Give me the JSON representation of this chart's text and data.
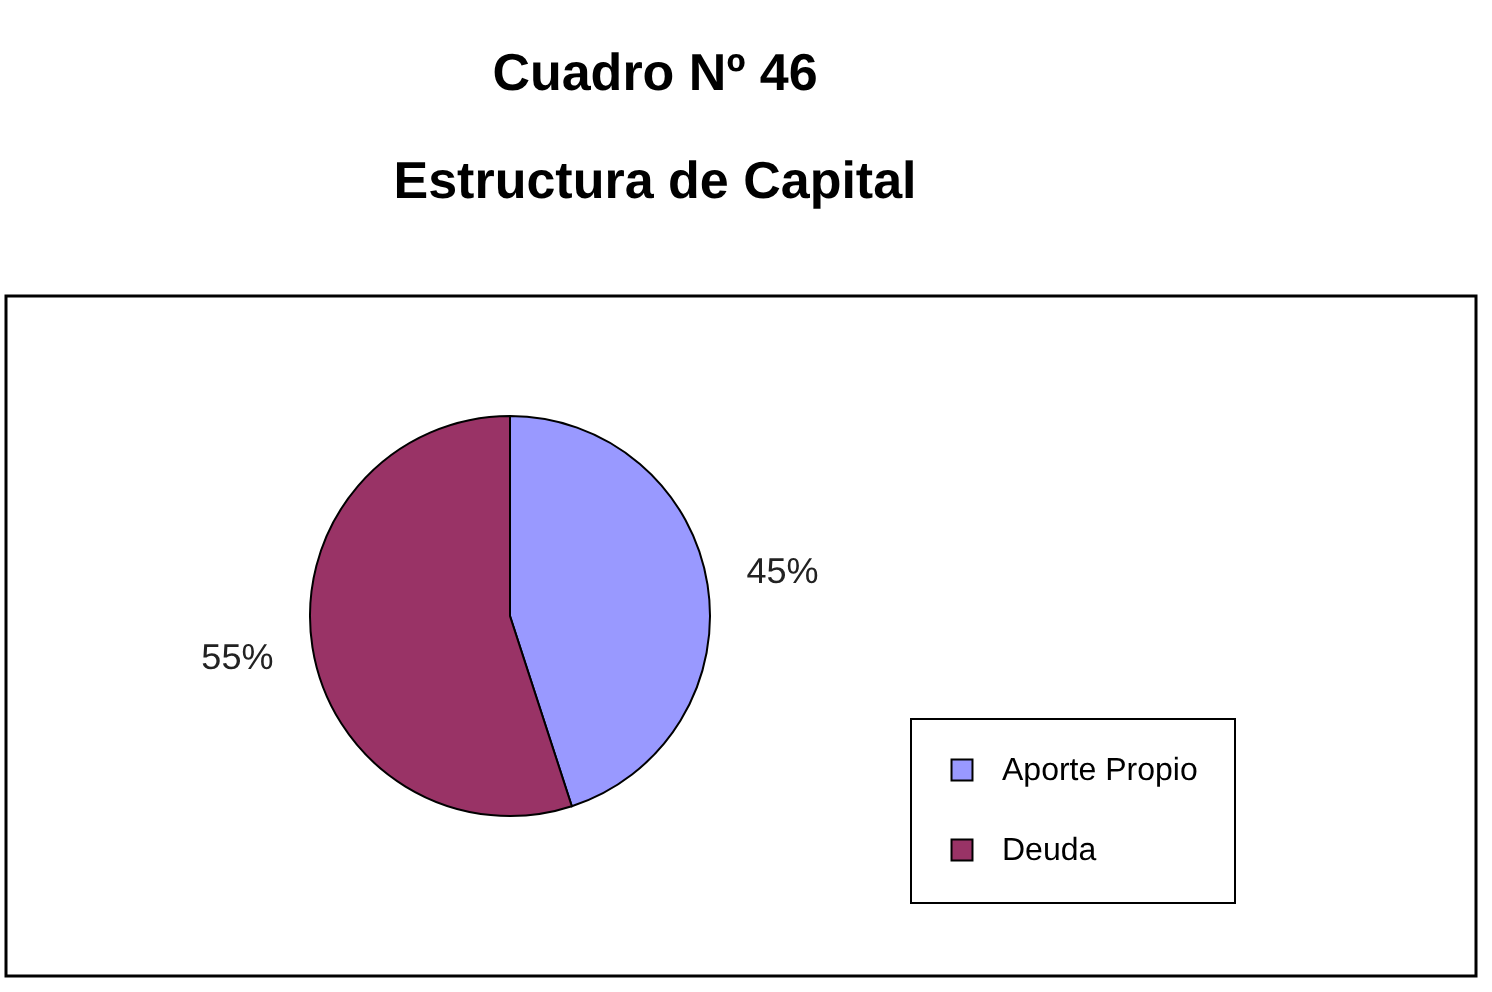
{
  "chart_data": {
    "type": "pie",
    "title": "Cuadro Nº 46",
    "subtitle": "Estructura de Capital",
    "categories": [
      "Aporte Propio",
      "Deuda"
    ],
    "values": [
      45,
      55
    ],
    "colors": [
      "#9999ff",
      "#993366"
    ],
    "value_labels": [
      "45%",
      "55%"
    ],
    "legend": "bottom right"
  }
}
